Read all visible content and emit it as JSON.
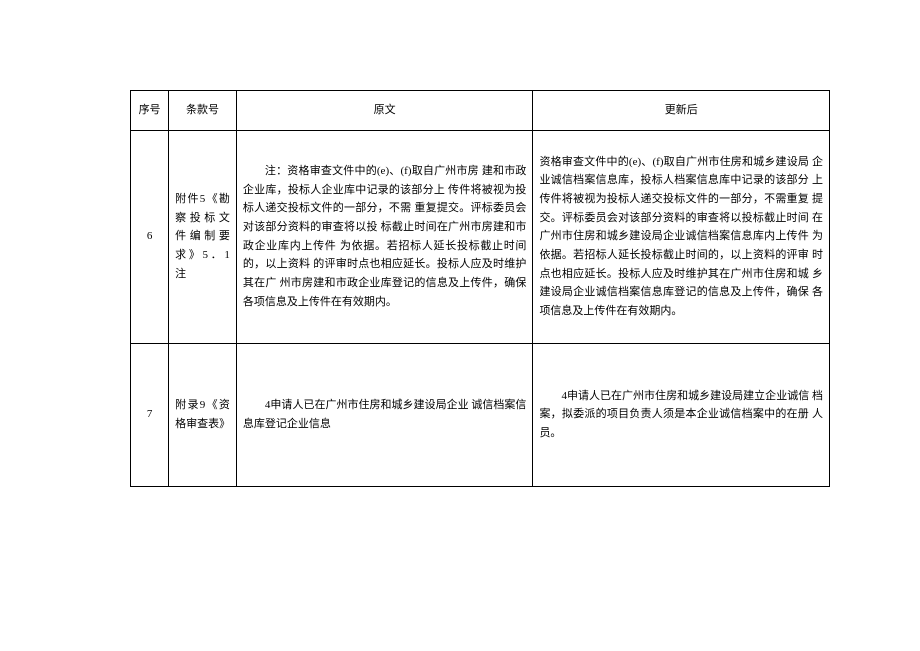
{
  "headers": {
    "col1": "序号",
    "col2": "条款号",
    "col3": "原文",
    "col4": "更新后"
  },
  "rows": [
    {
      "seq": "6",
      "clause": "附件5《勘察投标文件编制要求》5．1注",
      "original": "注：资格审查文件中的(e)、(f)取自广州市房 建和市政企业库，投标人企业库中记录的该部分上 传件将被视为投标人递交投标文件的一部分，不需 重复提交。评标委员会对该部分资料的审查将以投 标截止时间在广州市房建和市政企业库内上传件 为依据。若招标人延长投标截止时间的，以上资料 的评审时点也相应延长。投标人应及时维护其在广 州市房建和市政企业库登记的信息及上传件，确保 各项信息及上传件在有效期内。",
      "updated": "资格审查文件中的(e)、(f)取自广州市住房和城乡建设局 企业诚信档案信息库，投标人档案信息库中记录的该部分 上传件将被视为投标人递交投标文件的一部分，不需重复 提交。评标委员会对该部分资料的审查将以投标截止时间 在广州市住房和城乡建设局企业诚信档案信息库内上传件 为依据。若招标人延长投标截止时间的，以上资料的评审 时点也相应延长。投标人应及时维护其在广州市住房和城 乡建设局企业诚信档案信息库登记的信息及上传件，确保 各项信息及上传件在有效期内。"
    },
    {
      "seq": "7",
      "clause": "附录9《资格审查表》",
      "original": "4申请人已在广州市住房和城乡建设局企业 诚信档案信息库登记企业信息",
      "updated": "4申请人已在广州市住房和城乡建设局建立企业诚信 档案，拟委派的项目负责人须是本企业诚信档案中的在册 人员。"
    }
  ]
}
